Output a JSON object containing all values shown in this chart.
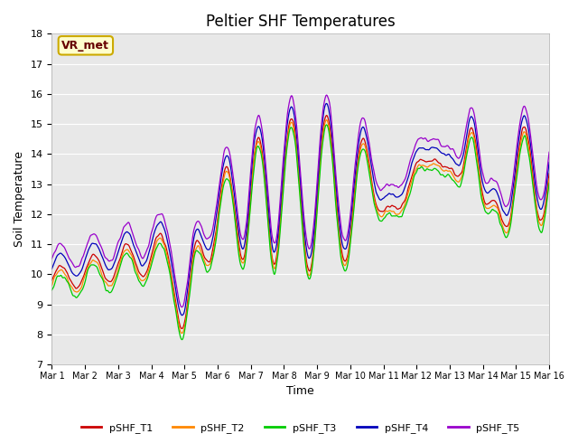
{
  "title": "Peltier SHF Temperatures",
  "xlabel": "Time",
  "ylabel": "Soil Temperature",
  "ylim": [
    7.0,
    18.0
  ],
  "yticks": [
    7.0,
    8.0,
    9.0,
    10.0,
    11.0,
    12.0,
    13.0,
    14.0,
    15.0,
    16.0,
    17.0,
    18.0
  ],
  "xtick_labels": [
    "Mar 1",
    "Mar 2",
    "Mar 3",
    "Mar 4",
    "Mar 5",
    "Mar 6",
    "Mar 7",
    "Mar 8",
    "Mar 9",
    "Mar 10",
    "Mar 11",
    "Mar 12",
    "Mar 13",
    "Mar 14",
    "Mar 15",
    "Mar 16"
  ],
  "series_colors": [
    "#cc0000",
    "#ff8800",
    "#00cc00",
    "#0000bb",
    "#9900cc"
  ],
  "series_labels": [
    "pSHF_T1",
    "pSHF_T2",
    "pSHF_T3",
    "pSHF_T4",
    "pSHF_T5"
  ],
  "background_color": "#e8e8e8",
  "vr_met_label": "VR_met",
  "vr_met_box_color": "#ccaa00",
  "vr_met_text_color": "#660000",
  "title_fontsize": 12
}
